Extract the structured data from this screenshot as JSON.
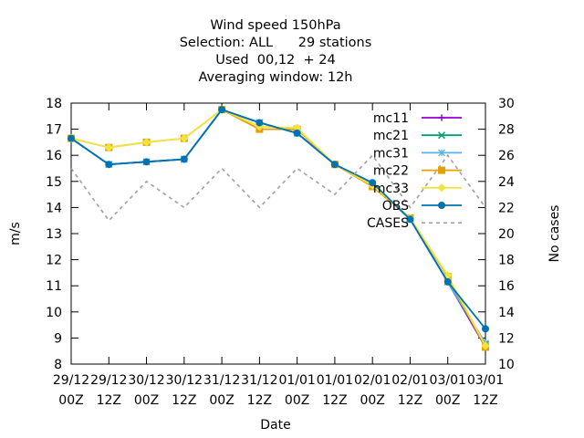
{
  "chart_data": {
    "type": "line",
    "title_lines": [
      "Wind speed 150hPa",
      "Selection: ALL      29 stations",
      "Used  00,12  + 24",
      "Averaging window: 12h"
    ],
    "xlabel": "Date",
    "ylabel": "m/s",
    "y2label": "No cases",
    "categories": [
      [
        "29/12",
        "00Z"
      ],
      [
        "29/12",
        "12Z"
      ],
      [
        "30/12",
        "00Z"
      ],
      [
        "30/12",
        "12Z"
      ],
      [
        "31/12",
        "00Z"
      ],
      [
        "31/12",
        "12Z"
      ],
      [
        "01/01",
        "00Z"
      ],
      [
        "01/01",
        "12Z"
      ],
      [
        "02/01",
        "00Z"
      ],
      [
        "02/01",
        "12Z"
      ],
      [
        "03/01",
        "00Z"
      ],
      [
        "03/01",
        "12Z"
      ]
    ],
    "ylim": [
      8,
      18
    ],
    "yticks": [
      8,
      9,
      10,
      11,
      12,
      13,
      14,
      15,
      16,
      17,
      18
    ],
    "y2lim": [
      10,
      30
    ],
    "y2ticks": [
      10,
      12,
      14,
      16,
      18,
      20,
      22,
      24,
      26,
      28,
      30
    ],
    "grid": false,
    "legend_position": "top-right",
    "series": [
      {
        "name": "mc11",
        "color": "#9400d3",
        "axis": "y",
        "marker": "plus",
        "values": [
          16.65,
          15.65,
          15.75,
          15.85,
          17.75,
          17.25,
          16.85,
          15.65,
          14.9,
          13.55,
          11.15,
          8.65
        ]
      },
      {
        "name": "mc21",
        "color": "#009e73",
        "axis": "y",
        "marker": "x",
        "values": [
          16.65,
          15.65,
          15.75,
          15.85,
          17.75,
          17.25,
          16.85,
          15.65,
          14.9,
          13.55,
          11.15,
          8.75
        ]
      },
      {
        "name": "mc31",
        "color": "#56b4e9",
        "axis": "y",
        "marker": "star",
        "values": [
          16.65,
          15.65,
          15.75,
          15.85,
          17.75,
          17.25,
          16.85,
          15.65,
          14.9,
          13.55,
          11.15,
          8.8
        ]
      },
      {
        "name": "mc22",
        "color": "#e69f00",
        "axis": "y",
        "marker": "box",
        "values": [
          16.65,
          16.3,
          16.5,
          16.65,
          17.75,
          17.0,
          17.0,
          15.65,
          14.8,
          13.6,
          11.35,
          8.65
        ]
      },
      {
        "name": "mc33",
        "color": "#f0e442",
        "axis": "y",
        "marker": "fbox",
        "values": [
          16.65,
          16.3,
          16.5,
          16.65,
          17.75,
          17.1,
          17.05,
          15.65,
          14.85,
          13.6,
          11.4,
          8.7
        ]
      },
      {
        "name": "OBS",
        "color": "#0072b2",
        "axis": "y",
        "marker": "circle",
        "values": [
          16.65,
          15.65,
          15.75,
          15.85,
          17.75,
          17.25,
          16.85,
          15.65,
          14.95,
          13.55,
          11.15,
          9.35
        ]
      },
      {
        "name": "CASES",
        "color": "#a0a0a0",
        "axis": "y2",
        "dashed": true,
        "values": [
          25,
          21,
          24,
          22,
          25,
          22,
          25,
          23,
          26,
          22,
          26,
          22
        ]
      }
    ]
  }
}
